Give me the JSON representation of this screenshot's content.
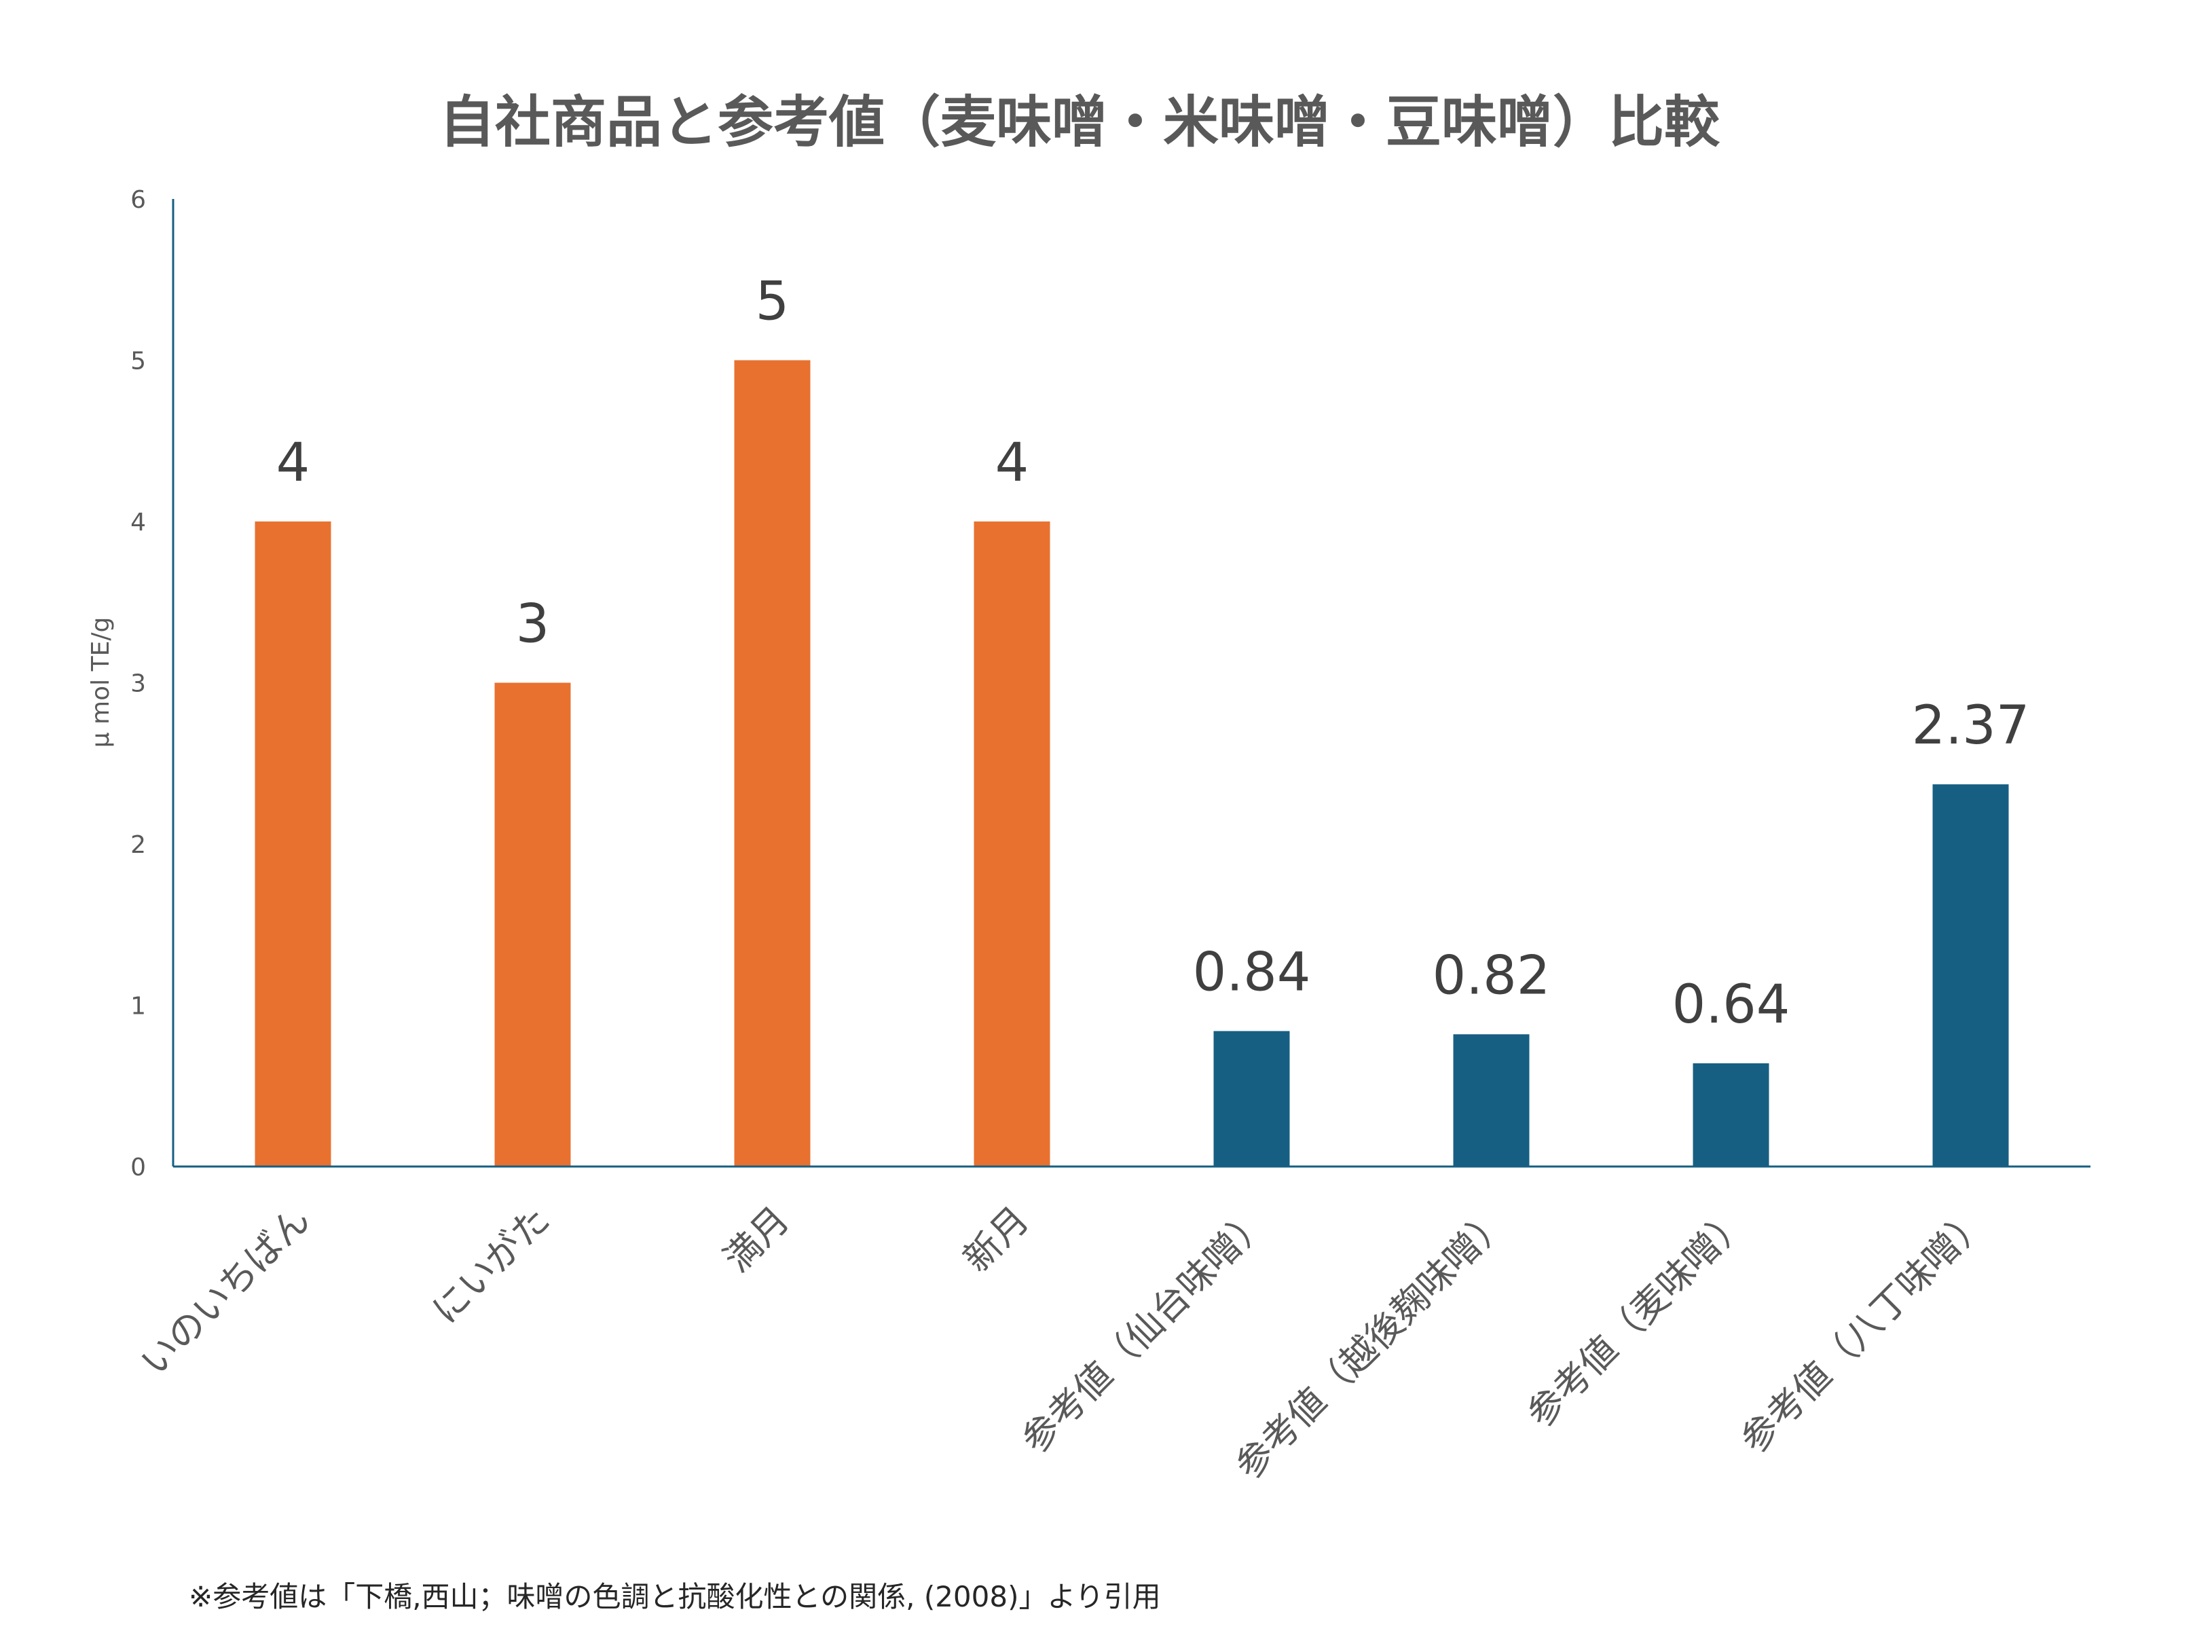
{
  "chart_data": {
    "type": "bar",
    "title": "自社商品と参考値（麦味噌・米味噌・豆味噌）比較",
    "ylabel": "μ mol TE/g",
    "xlabel": "",
    "ylim": [
      0,
      6
    ],
    "yticks": [
      0,
      1,
      2,
      3,
      4,
      5,
      6
    ],
    "grid": false,
    "legend": "none",
    "categories": [
      "いのいちばん",
      "にいがた",
      "満月",
      "新月",
      "参考値（仙台味噌）",
      "参考値（越後麹味噌）",
      "参考値（麦味噌）",
      "参考値（八丁味噌）"
    ],
    "values": [
      4,
      3,
      5,
      4,
      0.84,
      0.82,
      0.64,
      2.37
    ],
    "data_labels": [
      "4",
      "3",
      "5",
      "4",
      "0.84",
      "0.82",
      "0.64",
      "2.37"
    ],
    "bar_colors": [
      "#E87130",
      "#E87130",
      "#E87130",
      "#E87130",
      "#165F82",
      "#165F82",
      "#165F82",
      "#165F82"
    ]
  },
  "colors": {
    "own_product": "#E87130",
    "reference": "#165F82",
    "axis": "#165F82"
  },
  "footnote": "※参考値は「下橋,西山；味噌の色調と抗酸化性との関係, (2008)」より引用"
}
